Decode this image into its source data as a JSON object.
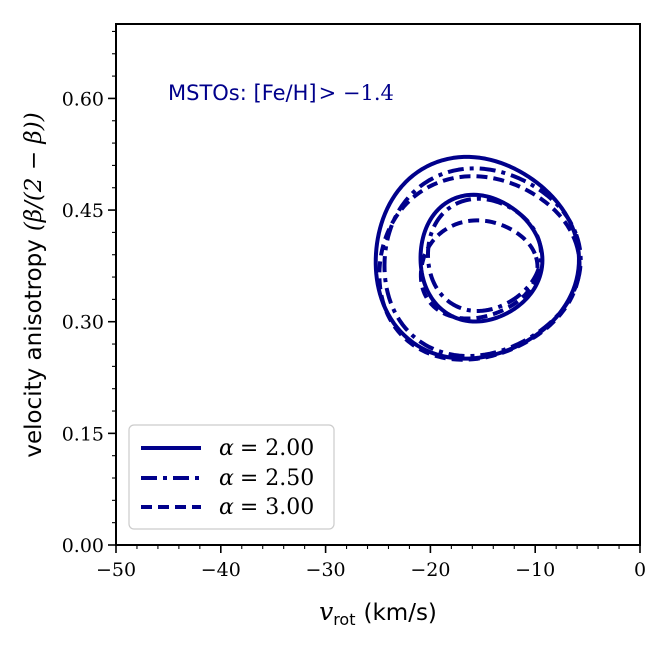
{
  "chart_data": {
    "type": "line",
    "title": "",
    "xlabel": {
      "var": "v",
      "sub": "rot",
      "unit": "(km/s)"
    },
    "ylabel": {
      "text": "velocity anisotropy",
      "expr": "(β/(2 − β))"
    },
    "xlim": [
      -50,
      0
    ],
    "ylim": [
      0,
      0.7
    ],
    "xticks": [
      -50,
      -40,
      -30,
      -20,
      -10,
      0
    ],
    "xtick_labels": [
      "−50",
      "−40",
      "−30",
      "−20",
      "−10",
      "0"
    ],
    "yticks": [
      0.0,
      0.15,
      0.3,
      0.45,
      0.6
    ],
    "ytick_labels": [
      "0.00",
      "0.15",
      "0.30",
      "0.45",
      "0.60"
    ],
    "annotation": {
      "text": "MSTOs: [Fe/H]",
      "expr": "> −1.4"
    },
    "line_color": "#00008b",
    "legend_position": "lower-left",
    "series": [
      {
        "name": "α = 2.00",
        "style": "solid",
        "contours": [
          {
            "label": "outer",
            "cx": -15.8,
            "cy": 0.385,
            "rx": 9.7,
            "ry": 0.135,
            "tilt": -12
          },
          {
            "label": "inner",
            "cx": -15.3,
            "cy": 0.385,
            "rx": 5.8,
            "ry": 0.085,
            "tilt": -14
          }
        ]
      },
      {
        "name": "α = 2.50",
        "style": "dashdot",
        "contours": [
          {
            "label": "outer",
            "cx": -15.3,
            "cy": 0.38,
            "rx": 9.4,
            "ry": 0.125,
            "tilt": -16
          },
          {
            "label": "inner",
            "cx": -15.0,
            "cy": 0.39,
            "rx": 5.4,
            "ry": 0.075,
            "tilt": -18
          }
        ]
      },
      {
        "name": "α = 3.00",
        "style": "dashed",
        "contours": [
          {
            "label": "outer",
            "cx": -15.6,
            "cy": 0.372,
            "rx": 9.6,
            "ry": 0.122,
            "tilt": -14
          },
          {
            "label": "inner",
            "cx": -15.5,
            "cy": 0.37,
            "rx": 5.6,
            "ry": 0.065,
            "tilt": -12
          }
        ]
      }
    ],
    "legend": [
      {
        "var": "α",
        "value": "= 2.00"
      },
      {
        "var": "α",
        "value": "= 2.50"
      },
      {
        "var": "α",
        "value": "= 3.00"
      }
    ]
  }
}
